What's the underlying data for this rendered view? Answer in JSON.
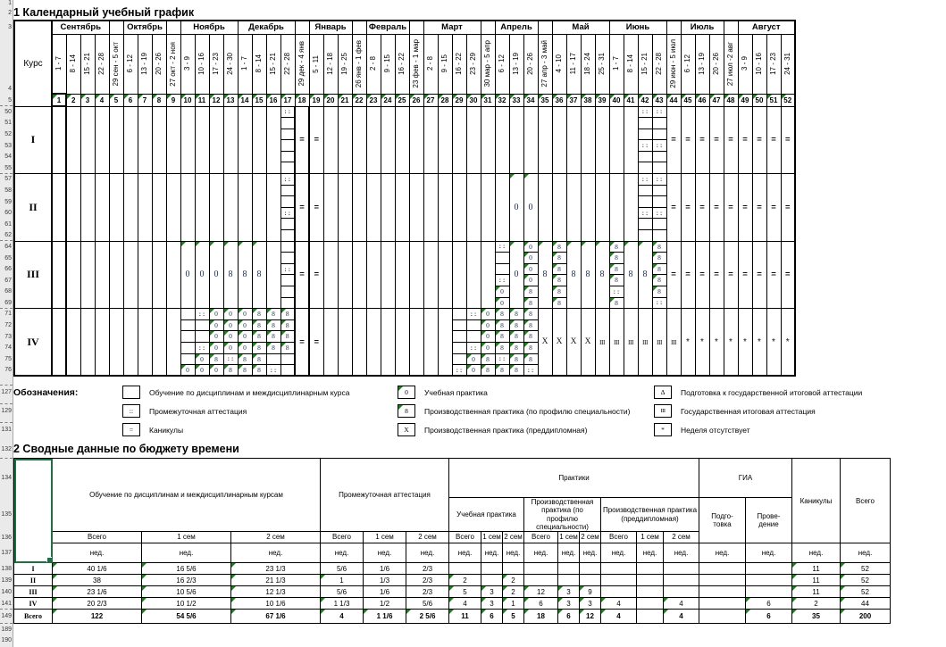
{
  "titles": {
    "calendar": "1 Календарный учебный график",
    "summary": "2 Сводные данные по бюджету времени"
  },
  "colors": {
    "comment_triangle": "#128712",
    "selection_green": "#1d7044",
    "grid_line": "#000000",
    "gutter_bg": "#eaeaea"
  },
  "calendar": {
    "course_header": "Курс",
    "header_rownums": {
      "title_spacer": "1",
      "title": "2",
      "months": "3",
      "dates": "4",
      "numbers": "5"
    },
    "months": [
      [
        "Сентябрь",
        4
      ],
      [
        "",
        1
      ],
      [
        "Октябрь",
        3
      ],
      [
        "",
        1
      ],
      [
        "Ноябрь",
        4
      ],
      [
        "Декабрь",
        4
      ],
      [
        "",
        1
      ],
      [
        "Январь",
        3
      ],
      [
        "",
        1
      ],
      [
        "Февраль",
        3
      ],
      [
        "",
        1
      ],
      [
        "Март",
        4
      ],
      [
        "",
        1
      ],
      [
        "Апрель",
        3
      ],
      [
        "",
        1
      ],
      [
        "Май",
        4
      ],
      [
        "Июнь",
        4
      ],
      [
        "",
        1
      ],
      [
        "Июль",
        3
      ],
      [
        "",
        1
      ],
      [
        "Август",
        4
      ]
    ],
    "weeks": [
      [
        "1",
        "1 - 7"
      ],
      [
        "2",
        "8 - 14"
      ],
      [
        "3",
        "15 - 21"
      ],
      [
        "4",
        "22 - 28"
      ],
      [
        "5",
        "29 сен - 5 окт"
      ],
      [
        "6",
        "6 - 12"
      ],
      [
        "7",
        "13 - 19"
      ],
      [
        "8",
        "20 - 26"
      ],
      [
        "9",
        "27 окт - 2 ноя"
      ],
      [
        "10",
        "3 - 9"
      ],
      [
        "11",
        "10 - 16"
      ],
      [
        "12",
        "17 - 23"
      ],
      [
        "13",
        "24 - 30"
      ],
      [
        "14",
        "1 - 7"
      ],
      [
        "15",
        "8 - 14"
      ],
      [
        "16",
        "15 - 21"
      ],
      [
        "17",
        "22 - 28"
      ],
      [
        "18",
        "29 дек - 4 янв"
      ],
      [
        "19",
        "5 - 11"
      ],
      [
        "20",
        "12 - 18"
      ],
      [
        "21",
        "19 - 25"
      ],
      [
        "22",
        "26 янв - 1 фев"
      ],
      [
        "23",
        "2 - 8"
      ],
      [
        "24",
        "9 - 15"
      ],
      [
        "25",
        "16 - 22"
      ],
      [
        "26",
        "23 фев - 1 мар"
      ],
      [
        "27",
        "2 - 8"
      ],
      [
        "28",
        "9 - 15"
      ],
      [
        "29",
        "16 - 22"
      ],
      [
        "30",
        "23 - 29"
      ],
      [
        "31",
        "30 мар - 5 апр"
      ],
      [
        "32",
        "6 - 12"
      ],
      [
        "33",
        "13 - 19"
      ],
      [
        "34",
        "20 - 26"
      ],
      [
        "35",
        "27 апр - 3 май"
      ],
      [
        "36",
        "4 - 10"
      ],
      [
        "37",
        "11 - 17"
      ],
      [
        "38",
        "18 - 24"
      ],
      [
        "39",
        "25 - 31"
      ],
      [
        "40",
        "1 - 7"
      ],
      [
        "41",
        "8 - 14"
      ],
      [
        "42",
        "15 - 21"
      ],
      [
        "43",
        "22 - 28"
      ],
      [
        "44",
        "29 июн - 5 июл"
      ],
      [
        "45",
        "6 - 12"
      ],
      [
        "46",
        "13 - 19"
      ],
      [
        "47",
        "20 - 26"
      ],
      [
        "48",
        "27 июл -2 авг"
      ],
      [
        "49",
        "3 - 9"
      ],
      [
        "50",
        "10 - 16"
      ],
      [
        "51",
        "17 - 23"
      ],
      [
        "52",
        "24 - 31"
      ]
    ],
    "courses": [
      {
        "label": "I",
        "rownums": [
          "50",
          "51",
          "52",
          "53",
          "54",
          "55"
        ],
        "cells": [
          {
            "n": 16,
            "v": ""
          },
          {
            "n": 1,
            "v": [
              "::",
              "",
              "",
              "",
              "",
              ""
            ]
          },
          {
            "n": 2,
            "v": "="
          },
          {
            "n": 22,
            "v": ""
          },
          {
            "n": 2,
            "v": [
              "::",
              "",
              "",
              "::",
              "",
              ""
            ]
          },
          {
            "n": 9,
            "v": "="
          }
        ]
      },
      {
        "label": "II",
        "rownums": [
          "57",
          "58",
          "59",
          "60",
          "61",
          "62"
        ],
        "cells": [
          {
            "n": 16,
            "v": ""
          },
          {
            "n": 1,
            "v": [
              "::",
              "",
              "",
              "::",
              "",
              ""
            ]
          },
          {
            "n": 2,
            "v": "="
          },
          {
            "n": 13,
            "v": ""
          },
          {
            "n": 2,
            "v": "0*"
          },
          {
            "n": 7,
            "v": ""
          },
          {
            "n": 2,
            "v": [
              "::",
              "",
              "",
              "::",
              "",
              ""
            ]
          },
          {
            "n": 9,
            "v": "="
          }
        ]
      },
      {
        "label": "III",
        "rownums": [
          "64",
          "65",
          "66",
          "67",
          "68",
          "69"
        ],
        "cells": [
          {
            "n": 9,
            "v": ""
          },
          {
            "n": 3,
            "v": "0*"
          },
          {
            "n": 3,
            "v": "8*"
          },
          {
            "n": 1,
            "v": ""
          },
          {
            "n": 1,
            "v": [
              "",
              "",
              "::",
              "",
              "",
              ""
            ]
          },
          {
            "n": 2,
            "v": "="
          },
          {
            "n": 12,
            "v": ""
          },
          {
            "n": 1,
            "v": [
              "::",
              "",
              "",
              "::",
              "0",
              "0"
            ]
          },
          {
            "n": 1,
            "v": "0*"
          },
          {
            "n": 1,
            "v": [
              "0",
              "0",
              "0",
              "0",
              "8",
              "8"
            ]
          },
          {
            "n": 1,
            "v": "8*"
          },
          {
            "n": 1,
            "v": [
              "8",
              "8",
              "8",
              "8",
              "8",
              "8"
            ]
          },
          {
            "n": 3,
            "v": "8*"
          },
          {
            "n": 1,
            "v": [
              "8",
              "8",
              "8",
              "8",
              "::",
              "8"
            ]
          },
          {
            "n": 2,
            "v": "8*"
          },
          {
            "n": 1,
            "v": [
              "8",
              "8",
              "8",
              "8",
              "8",
              "::"
            ]
          },
          {
            "n": 9,
            "v": "="
          }
        ]
      },
      {
        "label": "IV",
        "rownums": [
          "71",
          "72",
          "73",
          "74",
          "75",
          "76"
        ],
        "cells": [
          {
            "n": 9,
            "v": ""
          },
          {
            "n": 1,
            "v": [
              "",
              "",
              "",
              "",
              "",
              "0"
            ]
          },
          {
            "n": 1,
            "v": [
              "::",
              "",
              "",
              "::",
              "0",
              "0"
            ]
          },
          {
            "n": 1,
            "v": [
              "0",
              "0",
              "0",
              "0",
              "8",
              "0"
            ]
          },
          {
            "n": 1,
            "v": [
              "0",
              "0",
              "0",
              "0",
              "::",
              "8"
            ]
          },
          {
            "n": 1,
            "v": [
              "0",
              "0",
              "0",
              "0",
              "8",
              "8"
            ]
          },
          {
            "n": 1,
            "v": [
              "8",
              "8",
              "8",
              "8",
              "8",
              "8"
            ]
          },
          {
            "n": 1,
            "v": [
              "8",
              "8",
              "8",
              "8",
              "",
              "::"
            ]
          },
          {
            "n": 1,
            "v": [
              "8",
              "8",
              "8",
              "8",
              "",
              ""
            ]
          },
          {
            "n": 2,
            "v": "="
          },
          {
            "n": 9,
            "v": ""
          },
          {
            "n": 1,
            "v": [
              "",
              "",
              "",
              "",
              "",
              "::"
            ]
          },
          {
            "n": 1,
            "v": [
              "::",
              "",
              "",
              "::",
              "0",
              "0"
            ]
          },
          {
            "n": 1,
            "v": [
              "0",
              "0",
              "0",
              "0",
              "8",
              "8"
            ]
          },
          {
            "n": 1,
            "v": [
              "8",
              "8",
              "8",
              "8",
              "::",
              "8"
            ]
          },
          {
            "n": 1,
            "v": [
              "8",
              "8",
              "8",
              "8",
              "8",
              "8"
            ]
          },
          {
            "n": 1,
            "v": [
              "8",
              "8",
              "8",
              "8",
              "8",
              "::"
            ]
          },
          {
            "n": 4,
            "v": "X"
          },
          {
            "n": 6,
            "v": "III"
          },
          {
            "n": 8,
            "v": "*"
          }
        ]
      }
    ]
  },
  "legend": {
    "label": "Обозначения:",
    "rownums": [
      "127",
      "129",
      "131"
    ],
    "columns": [
      [
        {
          "sym": "",
          "tri": false,
          "text": "Обучение по дисциплинам и междисциплинарным курса"
        },
        {
          "sym": "::",
          "tri": false,
          "text": "Промежуточная аттестация"
        },
        {
          "sym": "=",
          "tri": false,
          "text": "Каникулы"
        }
      ],
      [
        {
          "sym": "0",
          "tri": true,
          "text": "Учебная практика"
        },
        {
          "sym": "8",
          "tri": true,
          "text": "Производственная практика (по профилю специальности)"
        },
        {
          "sym": "X",
          "tri": false,
          "text": "Производственная практика (преддипломная)"
        }
      ],
      [
        {
          "sym": "Δ",
          "tri": false,
          "text": "Подготовка к государственной итоговой аттестации"
        },
        {
          "sym": "III",
          "tri": false,
          "text": "Государственная итоговая аттестация"
        },
        {
          "sym": "*",
          "tri": false,
          "text": "Неделя отсутствует"
        }
      ]
    ]
  },
  "summary": {
    "rownums": {
      "title": "132",
      "header": [
        "134",
        "135",
        "136",
        "137"
      ],
      "rows": [
        "138",
        "139",
        "140",
        "141",
        "149"
      ],
      "trailing": [
        "189",
        "190"
      ]
    },
    "groups": {
      "training": "Обучение по дисциплинам и междисциплинарным курсам",
      "attestation": "Промежуточная аттестация",
      "practices": "Практики",
      "practice_edu": "Учебная практика",
      "practice_prof": "Производственная практика (по профилю специальности)",
      "practice_pre": "Производственная практика (преддипломная)",
      "gia": "ГИА",
      "gia_prep": "Подго-\nтовка",
      "gia_conduct": "Прове-\nдение",
      "vacation": "Каникулы",
      "total": "Всего"
    },
    "sem_labels": [
      "Всего",
      "1 сем",
      "2 сем"
    ],
    "unit": "нед.",
    "rows": [
      {
        "label": "I",
        "bold": false,
        "values": [
          "40 1/6",
          "16 5/6",
          "23 1/3",
          "5/6",
          "1/6",
          "2/3",
          "",
          "",
          "",
          "",
          "",
          "",
          "",
          "",
          "",
          "",
          "",
          "11",
          "52"
        ],
        "tri": [
          1,
          1,
          1,
          0,
          0,
          0,
          0,
          0,
          0,
          0,
          0,
          0,
          0,
          0,
          0,
          0,
          0,
          1,
          1
        ]
      },
      {
        "label": "II",
        "bold": false,
        "values": [
          "38",
          "16 2/3",
          "21 1/3",
          "1",
          "1/3",
          "2/3",
          "2",
          "",
          "2",
          "",
          "",
          "",
          "",
          "",
          "",
          "",
          "",
          "11",
          "52"
        ],
        "tri": [
          1,
          1,
          1,
          1,
          0,
          0,
          1,
          0,
          1,
          0,
          0,
          0,
          0,
          0,
          0,
          0,
          0,
          1,
          1
        ]
      },
      {
        "label": "III",
        "bold": false,
        "values": [
          "23 1/6",
          "10 5/6",
          "12 1/3",
          "5/6",
          "1/6",
          "2/3",
          "5",
          "3",
          "2",
          "12",
          "3",
          "9",
          "",
          "",
          "",
          "",
          "",
          "11",
          "52"
        ],
        "tri": [
          1,
          1,
          1,
          0,
          0,
          0,
          1,
          1,
          1,
          1,
          1,
          1,
          0,
          0,
          0,
          0,
          0,
          1,
          1
        ]
      },
      {
        "label": "IV",
        "bold": false,
        "values": [
          "20 2/3",
          "10 1/2",
          "10 1/6",
          "1 1/3",
          "1/2",
          "5/6",
          "4",
          "3",
          "1",
          "6",
          "3",
          "3",
          "4",
          "",
          "4",
          "",
          "6",
          "2",
          "44"
        ],
        "tri": [
          1,
          1,
          1,
          1,
          0,
          0,
          1,
          1,
          1,
          1,
          1,
          1,
          1,
          0,
          1,
          0,
          1,
          1,
          1
        ]
      },
      {
        "label": "Всего",
        "bold": true,
        "values": [
          "122",
          "54 5/6",
          "67 1/6",
          "4",
          "1 1/6",
          "2 5/6",
          "11",
          "6",
          "5",
          "18",
          "6",
          "12",
          "4",
          "",
          "4",
          "",
          "6",
          "35",
          "200"
        ],
        "tri": [
          1,
          1,
          1,
          1,
          1,
          1,
          1,
          1,
          1,
          1,
          1,
          1,
          1,
          0,
          1,
          0,
          1,
          1,
          1
        ]
      }
    ]
  }
}
